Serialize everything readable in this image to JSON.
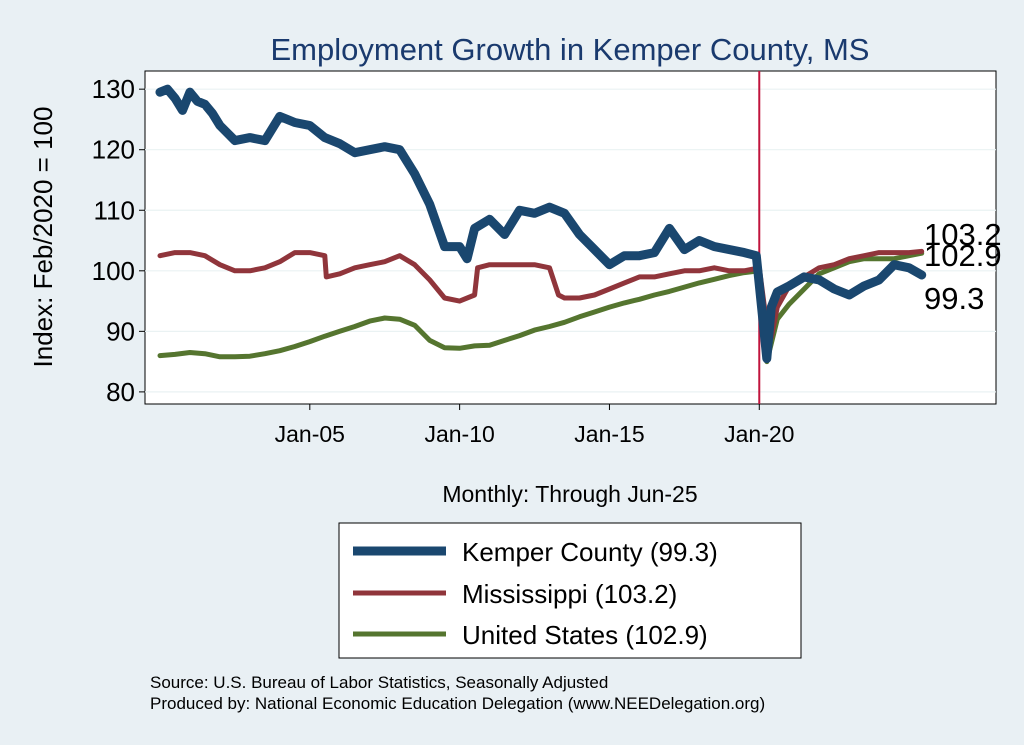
{
  "chart_data": {
    "type": "line",
    "title": "Employment Growth in Kemper  County, MS",
    "xlabel": "Monthly: Through Jun-25",
    "ylabel": "Index: Feb/2020 = 100",
    "xlim": [
      1999.5,
      2027.9
    ],
    "ylim": [
      78,
      133
    ],
    "yticks": [
      80,
      90,
      100,
      110,
      120,
      130
    ],
    "xticks": [
      {
        "label": "Jan-05",
        "value": 2005.0
      },
      {
        "label": "Jan-10",
        "value": 2010.0
      },
      {
        "label": "Jan-15",
        "value": 2015.0
      },
      {
        "label": "Jan-20",
        "value": 2020.0
      }
    ],
    "reference_line": {
      "x": 2020.0,
      "color": "#c0143c"
    },
    "end_labels": [
      "103.2",
      "102.9",
      "99.3"
    ],
    "series": [
      {
        "name": "Kemper  County (99.3)",
        "color": "#1a476f",
        "width": 9,
        "x": [
          2000.0,
          2000.25,
          2000.5,
          2000.75,
          2001.0,
          2001.25,
          2001.5,
          2001.75,
          2002.0,
          2002.5,
          2003.0,
          2003.5,
          2004.0,
          2004.25,
          2004.5,
          2005.0,
          2005.5,
          2006.0,
          2006.5,
          2007.0,
          2007.5,
          2008.0,
          2008.5,
          2009.0,
          2009.5,
          2010.0,
          2010.25,
          2010.5,
          2011.0,
          2011.5,
          2012.0,
          2012.5,
          2013.0,
          2013.5,
          2014.0,
          2014.5,
          2015.0,
          2015.5,
          2016.0,
          2016.5,
          2017.0,
          2017.5,
          2018.0,
          2018.5,
          2019.0,
          2019.5,
          2019.9,
          2020.25,
          2020.4,
          2020.6,
          2020.8,
          2021.0,
          2021.5,
          2022.0,
          2022.5,
          2023.0,
          2023.5,
          2024.0,
          2024.5,
          2025.0,
          2025.42
        ],
        "values": [
          129.5,
          130.0,
          128.5,
          126.5,
          129.5,
          128.0,
          127.5,
          126.0,
          124.0,
          121.5,
          122.0,
          121.5,
          125.5,
          125.0,
          124.5,
          124.0,
          122.0,
          121.0,
          119.5,
          120.0,
          120.5,
          120.0,
          116.0,
          111.0,
          104.0,
          104.0,
          102.0,
          107.0,
          108.5,
          106.0,
          110.0,
          109.5,
          110.5,
          109.5,
          106.0,
          103.5,
          101.0,
          102.5,
          102.5,
          103.0,
          107.0,
          103.5,
          105.0,
          104.0,
          103.5,
          103.0,
          102.5,
          85.5,
          94.0,
          96.5,
          97.0,
          97.5,
          99.0,
          98.5,
          97.0,
          96.0,
          97.5,
          98.5,
          101.0,
          100.5,
          99.3
        ]
      },
      {
        "name": "Mississippi (103.2)",
        "color": "#90353b",
        "width": 5,
        "x": [
          2000.0,
          2000.5,
          2001.0,
          2001.5,
          2002.0,
          2002.5,
          2003.0,
          2003.5,
          2004.0,
          2004.5,
          2005.0,
          2005.5,
          2005.55,
          2006.0,
          2006.5,
          2007.0,
          2007.5,
          2008.0,
          2008.5,
          2009.0,
          2009.5,
          2010.0,
          2010.5,
          2010.6,
          2011.0,
          2011.5,
          2012.0,
          2012.5,
          2013.0,
          2013.3,
          2013.5,
          2014.0,
          2014.5,
          2015.0,
          2015.5,
          2016.0,
          2016.5,
          2017.0,
          2017.5,
          2018.0,
          2018.5,
          2019.0,
          2019.5,
          2020.0,
          2020.25,
          2020.4,
          2020.6,
          2021.0,
          2021.5,
          2022.0,
          2022.5,
          2023.0,
          2023.5,
          2024.0,
          2024.5,
          2025.0,
          2025.42
        ],
        "values": [
          102.5,
          103.0,
          103.0,
          102.5,
          101.0,
          100.0,
          100.0,
          100.5,
          101.5,
          103.0,
          103.0,
          102.5,
          99.0,
          99.5,
          100.5,
          101.0,
          101.5,
          102.5,
          101.0,
          98.5,
          95.5,
          95.0,
          96.0,
          100.5,
          101.0,
          101.0,
          101.0,
          101.0,
          100.5,
          96.0,
          95.5,
          95.5,
          96.0,
          97.0,
          98.0,
          99.0,
          99.0,
          99.5,
          100.0,
          100.0,
          100.5,
          100.0,
          100.0,
          100.5,
          91.0,
          89.0,
          94.0,
          97.5,
          99.0,
          100.5,
          101.0,
          102.0,
          102.5,
          103.0,
          103.0,
          103.0,
          103.2
        ]
      },
      {
        "name": "United States (102.9)",
        "color": "#55752f",
        "width": 5,
        "x": [
          2000.0,
          2000.5,
          2001.0,
          2001.5,
          2002.0,
          2002.5,
          2003.0,
          2003.5,
          2004.0,
          2004.5,
          2005.0,
          2005.5,
          2006.0,
          2006.5,
          2007.0,
          2007.5,
          2008.0,
          2008.5,
          2009.0,
          2009.5,
          2010.0,
          2010.5,
          2011.0,
          2011.5,
          2012.0,
          2012.5,
          2013.0,
          2013.5,
          2014.0,
          2014.5,
          2015.0,
          2015.5,
          2016.0,
          2016.5,
          2017.0,
          2017.5,
          2018.0,
          2018.5,
          2019.0,
          2019.5,
          2020.0,
          2020.25,
          2020.35,
          2020.6,
          2021.0,
          2021.5,
          2022.0,
          2022.5,
          2023.0,
          2023.5,
          2024.0,
          2024.5,
          2025.0,
          2025.42
        ],
        "values": [
          86.0,
          86.2,
          86.5,
          86.3,
          85.8,
          85.8,
          85.9,
          86.3,
          86.8,
          87.5,
          88.3,
          89.2,
          90.0,
          90.8,
          91.7,
          92.2,
          92.0,
          91.0,
          88.5,
          87.3,
          87.2,
          87.6,
          87.7,
          88.5,
          89.3,
          90.2,
          90.8,
          91.5,
          92.4,
          93.2,
          94.0,
          94.7,
          95.3,
          96.0,
          96.6,
          97.3,
          98.0,
          98.6,
          99.2,
          99.7,
          100.0,
          85.0,
          87.0,
          92.0,
          94.5,
          97.0,
          99.5,
          100.5,
          101.5,
          102.0,
          102.0,
          102.0,
          102.5,
          102.9
        ]
      }
    ]
  },
  "footer": {
    "source": "Source: U.S. Bureau of Labor Statistics, Seasonally Adjusted",
    "produced_by": "Produced by: National Economic Education Delegation (www.NEEDelegation.org)"
  }
}
